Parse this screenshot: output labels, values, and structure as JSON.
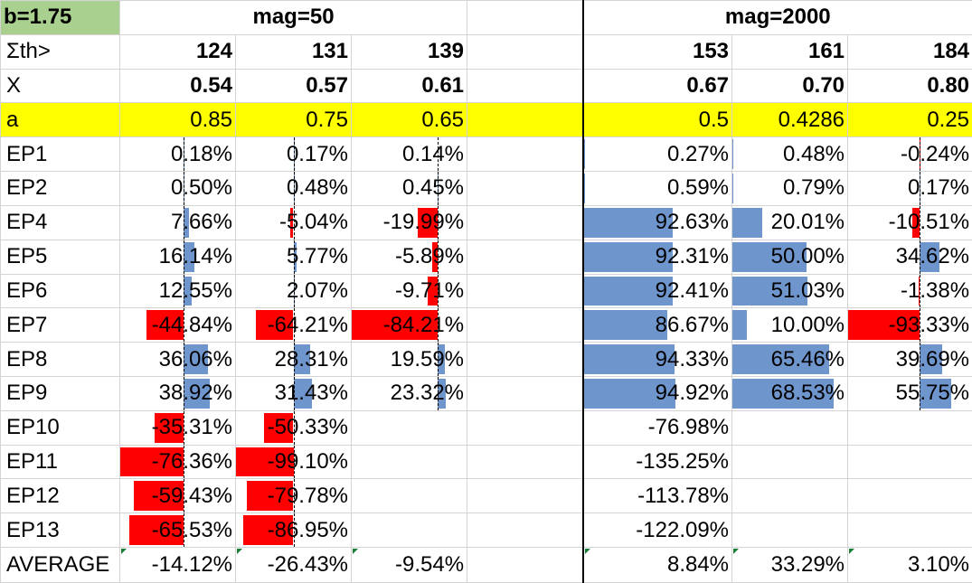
{
  "sheet": {
    "b_label": "b=1.75",
    "group1": "mag=50",
    "group2": "mag=2000",
    "sum_label": "Σth>",
    "x_label": "X",
    "a_label": "a",
    "average_label": "AVERAGE",
    "sum_values": [
      "124",
      "131",
      "139",
      "153",
      "161",
      "184"
    ],
    "x_values": [
      "0.54",
      "0.57",
      "0.61",
      "0.67",
      "0.70",
      "0.80"
    ],
    "a_values": [
      "0.85",
      "0.75",
      "0.65",
      "0.5",
      "0.4286",
      "0.25"
    ],
    "averages": [
      "-14.12%",
      "-26.43%",
      "-9.54%",
      "8.84%",
      "33.29%",
      "3.10%"
    ]
  },
  "colors": {
    "positive_bar": "#6f95cd",
    "negative_bar": "#ff0000",
    "b_cell": "#a9d08e",
    "highlight_row": "#ffff00"
  },
  "rows": [
    {
      "label": "EP1",
      "values": [
        "0.18%",
        "0.17%",
        "0.14%",
        "0.27%",
        "0.48%",
        "-0.24%"
      ]
    },
    {
      "label": "EP2",
      "values": [
        "0.50%",
        "0.48%",
        "0.45%",
        "0.59%",
        "0.79%",
        "0.17%"
      ]
    },
    {
      "label": "EP4",
      "values": [
        "7.66%",
        "-5.04%",
        "-19.99%",
        "92.63%",
        "20.01%",
        "-10.51%"
      ]
    },
    {
      "label": "EP5",
      "values": [
        "16.14%",
        "5.77%",
        "-5.89%",
        "92.31%",
        "50.00%",
        "34.62%"
      ]
    },
    {
      "label": "EP6",
      "values": [
        "12.55%",
        "2.07%",
        "-9.71%",
        "92.41%",
        "51.03%",
        "-1.38%"
      ]
    },
    {
      "label": "EP7",
      "values": [
        "-44.84%",
        "-64.21%",
        "-84.21%",
        "86.67%",
        "10.00%",
        "-93.33%"
      ]
    },
    {
      "label": "EP8",
      "values": [
        "36.06%",
        "28.31%",
        "19.59%",
        "94.33%",
        "65.46%",
        "39.69%"
      ]
    },
    {
      "label": "EP9",
      "values": [
        "38.92%",
        "31.43%",
        "23.32%",
        "94.92%",
        "68.53%",
        "55.75%"
      ]
    },
    {
      "label": "EP10",
      "values": [
        "-35.31%",
        "-50.33%",
        "",
        "-76.98%",
        "",
        ""
      ]
    },
    {
      "label": "EP11",
      "values": [
        "-76.36%",
        "-99.10%",
        "",
        "-135.25%",
        "",
        ""
      ]
    },
    {
      "label": "EP12",
      "values": [
        "-59.43%",
        "-79.78%",
        "",
        "-113.78%",
        "",
        ""
      ]
    },
    {
      "label": "EP13",
      "values": [
        "-65.53%",
        "-86.95%",
        "",
        "-122.09%",
        "",
        ""
      ]
    }
  ]
}
